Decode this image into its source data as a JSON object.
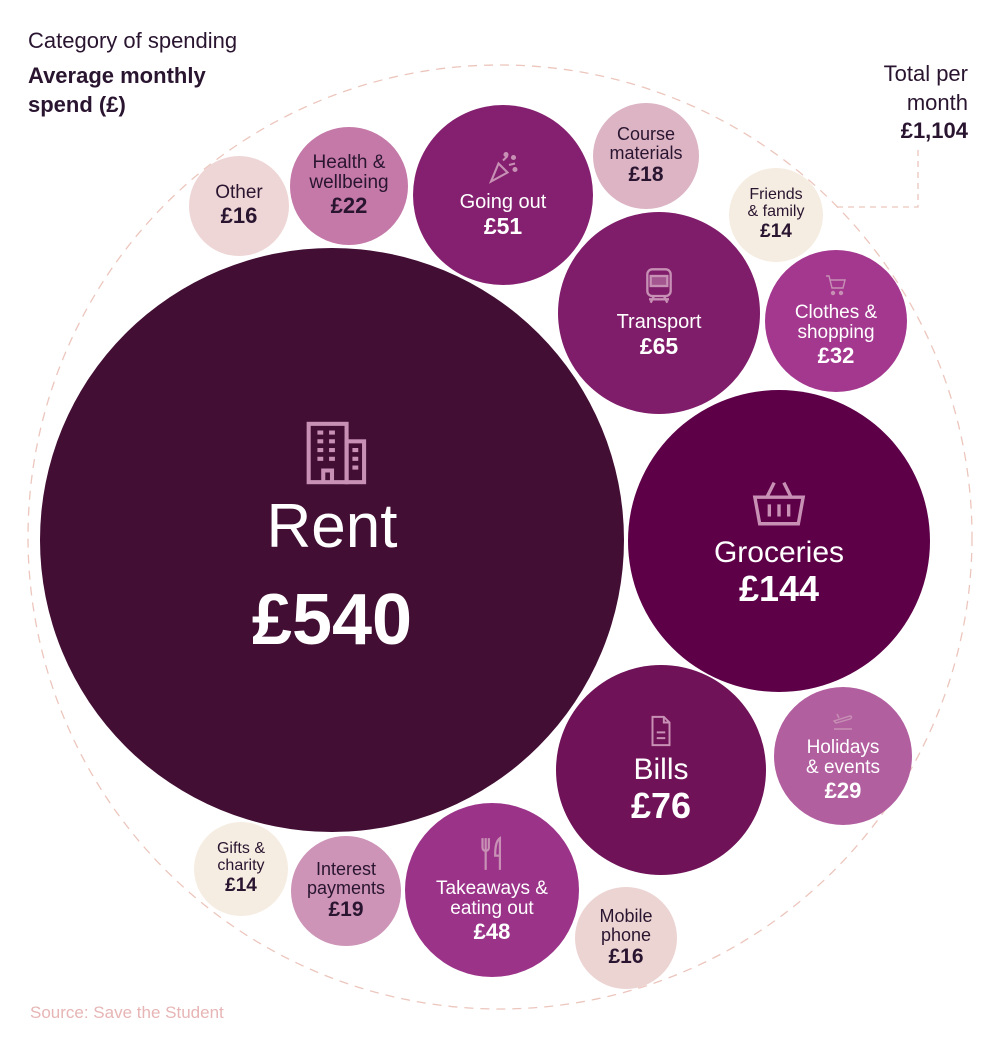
{
  "header": {
    "subtitle": "Category of spending",
    "title": "Average monthly\nspend (£)",
    "total_label": "Total per\nmonth",
    "total_value": "£1,104"
  },
  "source": "Source: Save the Student",
  "colors": {
    "dark_text": "#2a1530",
    "light_text": "#ffffff",
    "outline": "#ecc6bd",
    "source": "#e7b5b5"
  },
  "chart_data": {
    "type": "bubble",
    "title": "Average monthly spend (£)",
    "total": 1104,
    "bubbles": [
      {
        "label": "Rent",
        "value": 540,
        "value_text": "£540",
        "color": "#420e33",
        "icon": "building-icon"
      },
      {
        "label": "Groceries",
        "value": 144,
        "value_text": "£144",
        "color": "#5e0048",
        "icon": "basket-icon"
      },
      {
        "label": "Bills",
        "value": 76,
        "value_text": "£76",
        "color": "#6f1257",
        "icon": "document-icon"
      },
      {
        "label": "Transport",
        "value": 65,
        "value_text": "£65",
        "color": "#7f1d6a",
        "icon": "train-icon"
      },
      {
        "label": "Going out",
        "value": 51,
        "value_text": "£51",
        "color": "#84206f",
        "icon": "party-popper-icon"
      },
      {
        "label": "Takeaways &\neating out",
        "value": 48,
        "value_text": "£48",
        "color": "#9b3389",
        "icon": "fork-knife-icon"
      },
      {
        "label": "Clothes &\nshopping",
        "value": 32,
        "value_text": "£32",
        "color": "#a4388f",
        "icon": "cart-icon"
      },
      {
        "label": "Holidays\n& events",
        "value": 29,
        "value_text": "£29",
        "color": "#b25fa0",
        "icon": "plane-icon"
      },
      {
        "label": "Health &\nwellbeing",
        "value": 22,
        "value_text": "£22",
        "color": "#c479a8",
        "icon": ""
      },
      {
        "label": "Interest\npayments",
        "value": 19,
        "value_text": "£19",
        "color": "#cd94b7",
        "icon": ""
      },
      {
        "label": "Course\nmaterials",
        "value": 18,
        "value_text": "£18",
        "color": "#dcb4c4",
        "icon": ""
      },
      {
        "label": "Mobile\nphone",
        "value": 16,
        "value_text": "£16",
        "color": "#ecd4d3",
        "icon": ""
      },
      {
        "label": "Other",
        "value": 16,
        "value_text": "£16",
        "color": "#efd6d6",
        "icon": ""
      },
      {
        "label": "Friends\n& family",
        "value": 14,
        "value_text": "£14",
        "color": "#f6ede2",
        "icon": ""
      },
      {
        "label": "Gifts &\ncharity",
        "value": 14,
        "value_text": "£14",
        "color": "#f6ede2",
        "icon": ""
      }
    ]
  }
}
